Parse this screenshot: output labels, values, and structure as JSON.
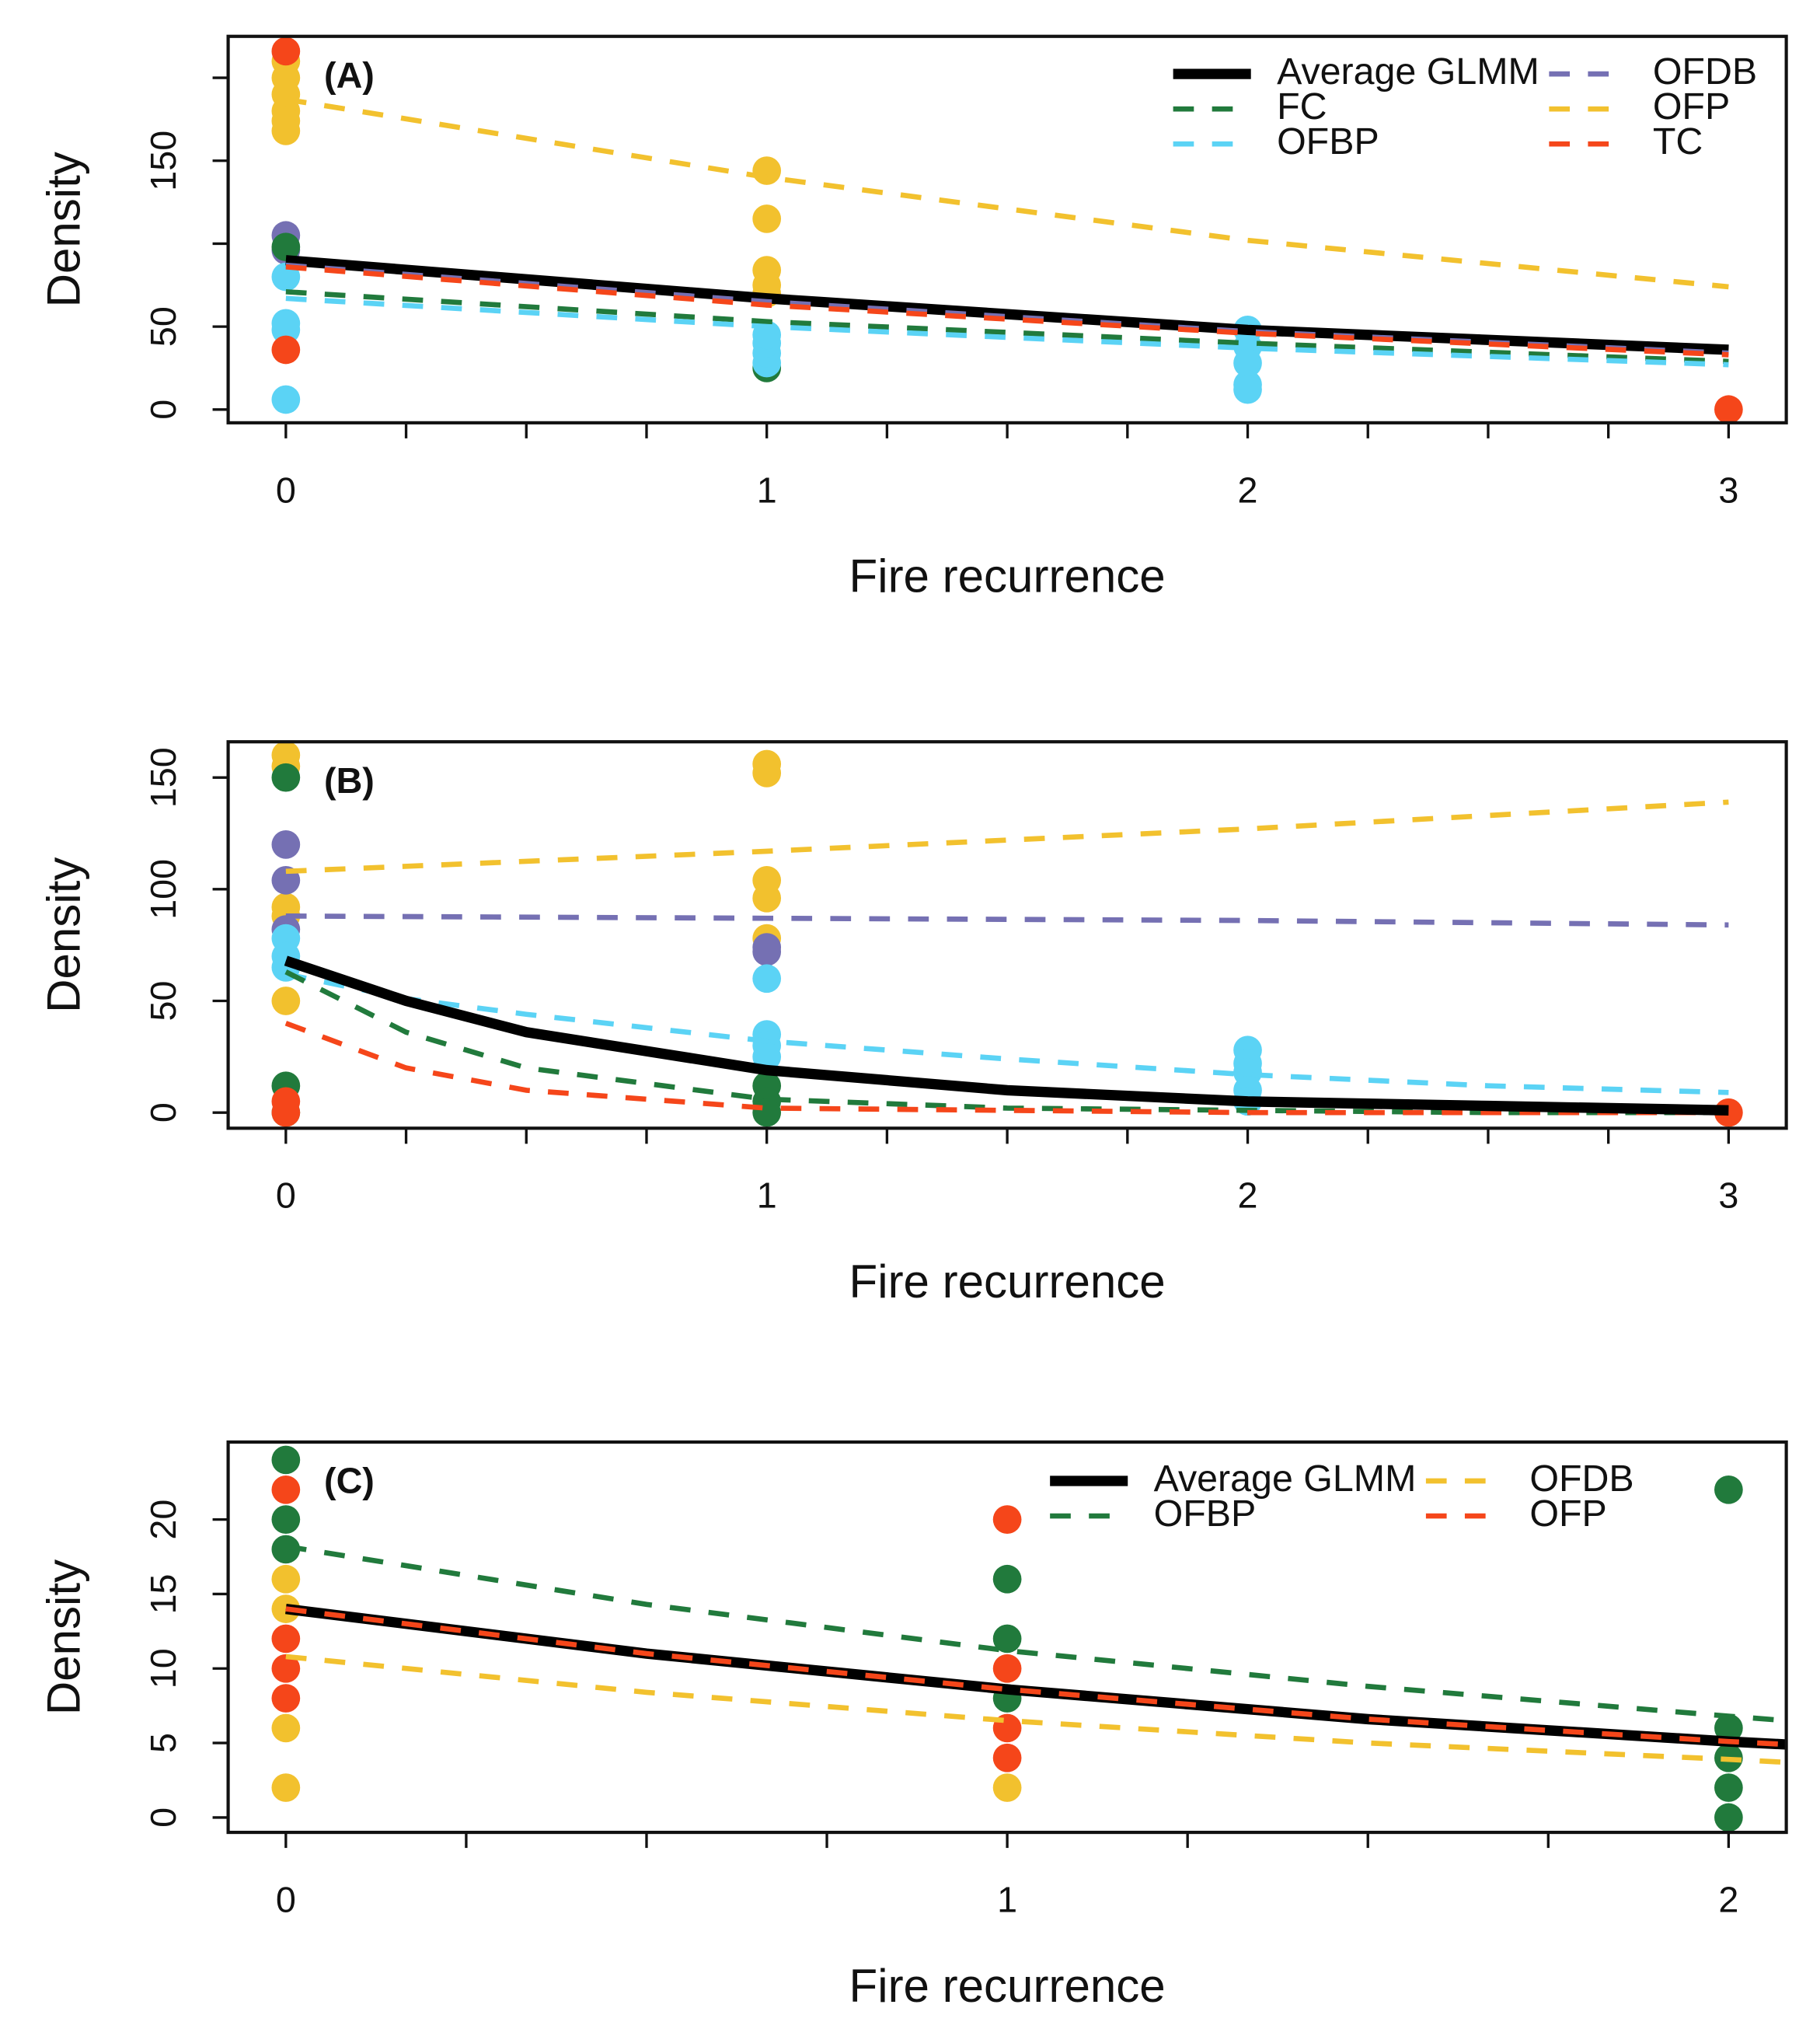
{
  "chart_data": [
    {
      "type": "scatter",
      "label": "(A)",
      "xlabel": "Fire recurrence",
      "ylabel": "Density",
      "xlim": [
        -0.12,
        3.12
      ],
      "ylim": [
        -8,
        225
      ],
      "xticks": [
        0,
        1,
        2,
        3
      ],
      "xminorticks": [
        0.25,
        0.5,
        0.75,
        1.25,
        1.5,
        1.75,
        2.25,
        2.5,
        2.75
      ],
      "yticks": [
        0,
        50,
        {
          "value": 100,
          "label": null
        },
        150,
        {
          "value": 200,
          "label": null
        }
      ],
      "legend": "topright",
      "series": [
        {
          "name": "Average GLMM",
          "color": "#000000",
          "dashed": false,
          "x": [
            0,
            1,
            2,
            3
          ],
          "values": [
            90,
            67,
            48,
            36
          ],
          "points": {
            "x": [],
            "y": []
          }
        },
        {
          "name": "OFDB",
          "color": "#7570b3",
          "dashed": true,
          "x": [
            0,
            1,
            2,
            3
          ],
          "values": [
            87,
            65,
            47,
            34
          ],
          "points": {
            "x": [
              0,
              0
            ],
            "y": [
              105,
              96
            ]
          }
        },
        {
          "name": "FC",
          "color": "#217a3c",
          "dashed": true,
          "x": [
            0,
            1,
            2,
            3
          ],
          "values": [
            71,
            53,
            40,
            29
          ],
          "points": {
            "x": [
              0,
              1
            ],
            "y": [
              98,
              25
            ]
          }
        },
        {
          "name": "OFP",
          "color": "#f2c12e",
          "dashed": true,
          "x": [
            0,
            1,
            2,
            3
          ],
          "values": [
            187,
            140,
            102,
            74
          ],
          "points": {
            "x": [
              0,
              0,
              0,
              0,
              0,
              0,
              1,
              1,
              1,
              1,
              1
            ],
            "y": [
              210,
              200,
              190,
              180,
              174,
              168,
              144,
              115,
              84,
              75,
              70
            ]
          }
        },
        {
          "name": "OFBP",
          "color": "#5bd3f5",
          "dashed": true,
          "x": [
            0,
            1,
            2,
            3
          ],
          "values": [
            67,
            50,
            37,
            27
          ],
          "points": {
            "x": [
              0,
              0,
              0,
              0,
              1,
              1,
              1,
              1,
              2,
              2,
              2,
              2,
              2
            ],
            "y": [
              6,
              48,
              52,
              80,
              28,
              34,
              40,
              45,
              48,
              38,
              28,
              15,
              12
            ]
          }
        },
        {
          "name": "TC",
          "color": "#f5461a",
          "dashed": true,
          "x": [
            0,
            1,
            2,
            3
          ],
          "values": [
            86,
            63,
            46,
            33
          ],
          "points": {
            "x": [
              0,
              0,
              3
            ],
            "y": [
              216,
              36,
              0
            ]
          }
        }
      ]
    },
    {
      "type": "scatter",
      "label": "(B)",
      "xlabel": "Fire recurrence",
      "ylabel": "Density",
      "xlim": [
        -0.12,
        3.12
      ],
      "ylim": [
        -7,
        166
      ],
      "xticks": [
        0,
        1,
        2,
        3
      ],
      "xminorticks": [
        0.25,
        0.5,
        0.75,
        1.25,
        1.5,
        1.75,
        2.25,
        2.5,
        2.75
      ],
      "yticks": [
        0,
        50,
        100,
        150
      ],
      "series": [
        {
          "name": "OFP",
          "color": "#f2c12e",
          "dashed": true,
          "x": [
            0,
            1,
            2,
            3
          ],
          "values": [
            108,
            117,
            127,
            139
          ],
          "points": {
            "x": [
              0,
              0,
              0,
              0,
              0,
              1,
              1,
              1,
              1,
              1
            ],
            "y": [
              160,
              155,
              92,
              88,
              50,
              156,
              152,
              104,
              96,
              78
            ]
          }
        },
        {
          "name": "OFDB",
          "color": "#7570b3",
          "dashed": true,
          "x": [
            0,
            1,
            2,
            3
          ],
          "values": [
            88,
            87,
            86,
            84
          ],
          "points": {
            "x": [
              0,
              0,
              0,
              1,
              1
            ],
            "y": [
              120,
              104,
              82,
              74,
              72
            ]
          }
        },
        {
          "name": "OFBP",
          "color": "#5bd3f5",
          "dashed": true,
          "x": [
            0,
            0.25,
            0.5,
            1,
            1.5,
            2,
            2.5,
            3
          ],
          "values": [
            62,
            51,
            44,
            32,
            24,
            17,
            12,
            9
          ],
          "points": {
            "x": [
              0,
              0,
              0,
              1,
              1,
              1,
              1,
              2,
              2,
              2,
              2,
              2
            ],
            "y": [
              78,
              70,
              65,
              60,
              35,
              30,
              25,
              28,
              22,
              18,
              10,
              5
            ]
          }
        },
        {
          "name": "FC",
          "color": "#217a3c",
          "dashed": true,
          "x": [
            0,
            0.25,
            0.5,
            1,
            1.5,
            2,
            2.5,
            3
          ],
          "values": [
            63,
            36,
            20,
            6,
            2,
            1,
            0,
            0
          ],
          "points": {
            "x": [
              0,
              0,
              0,
              1,
              1,
              1
            ],
            "y": [
              150,
              12,
              0,
              12,
              5,
              0
            ]
          }
        },
        {
          "name": "TC",
          "color": "#f5461a",
          "dashed": true,
          "x": [
            0,
            0.25,
            0.5,
            1,
            1.5,
            2,
            2.5,
            3
          ],
          "values": [
            40,
            20,
            10,
            2,
            1,
            0,
            0,
            0
          ],
          "points": {
            "x": [
              0,
              0,
              3
            ],
            "y": [
              5,
              0,
              0
            ]
          }
        },
        {
          "name": "Average GLMM",
          "color": "#000000",
          "dashed": false,
          "x": [
            0,
            0.25,
            0.5,
            1,
            1.5,
            2,
            2.5,
            3
          ],
          "values": [
            68,
            50,
            36,
            19,
            10,
            5,
            3,
            1
          ],
          "points": {
            "x": [],
            "y": []
          }
        }
      ]
    },
    {
      "type": "scatter",
      "label": "(C)",
      "xlabel": "Fire recurrence",
      "ylabel": "Density",
      "xlim": [
        -0.08,
        2.08
      ],
      "ylim": [
        -1,
        25.2
      ],
      "xticks": [
        0,
        1,
        2
      ],
      "xminorticks": [
        0.25,
        0.5,
        0.75,
        1.25,
        1.5,
        1.75
      ],
      "yticks": [
        0,
        5,
        10,
        15,
        20
      ],
      "legend": "topright",
      "series": [
        {
          "name": "Average GLMM",
          "color": "#000000",
          "dashed": false,
          "x": [
            0,
            0.5,
            1,
            1.5,
            2,
            2.08
          ],
          "values": [
            14,
            11,
            8.6,
            6.6,
            5.1,
            4.9
          ],
          "points": {
            "x": [],
            "y": []
          }
        },
        {
          "name": "OFDB",
          "color": "#f2c12e",
          "dashed": true,
          "x": [
            0,
            0.5,
            1,
            1.5,
            2,
            2.08
          ],
          "values": [
            10.8,
            8.4,
            6.5,
            5,
            3.9,
            3.7
          ],
          "points": {
            "x": [
              0,
              0,
              0,
              0,
              1
            ],
            "y": [
              16,
              14,
              6,
              2,
              2
            ]
          }
        },
        {
          "name": "OFBP",
          "color": "#217a3c",
          "dashed": true,
          "x": [
            0,
            0.5,
            1,
            1.5,
            2,
            2.08
          ],
          "values": [
            18.2,
            14.3,
            11.2,
            8.8,
            6.8,
            6.5
          ],
          "points": {
            "x": [
              0,
              0,
              0,
              1,
              1,
              1,
              2,
              2,
              2,
              2,
              2
            ],
            "y": [
              24,
              20,
              18,
              16,
              12,
              8,
              22,
              6,
              4,
              2,
              0
            ]
          }
        },
        {
          "name": "OFP",
          "color": "#f5461a",
          "dashed": true,
          "x": [
            0,
            0.5,
            1,
            1.5,
            2,
            2.08
          ],
          "values": [
            14,
            11,
            8.6,
            6.6,
            5.1,
            4.9
          ],
          "points": {
            "x": [
              0,
              0,
              0,
              0,
              1,
              1,
              1,
              1
            ],
            "y": [
              22,
              12,
              10,
              8,
              20,
              10,
              6,
              4
            ]
          }
        }
      ]
    }
  ]
}
